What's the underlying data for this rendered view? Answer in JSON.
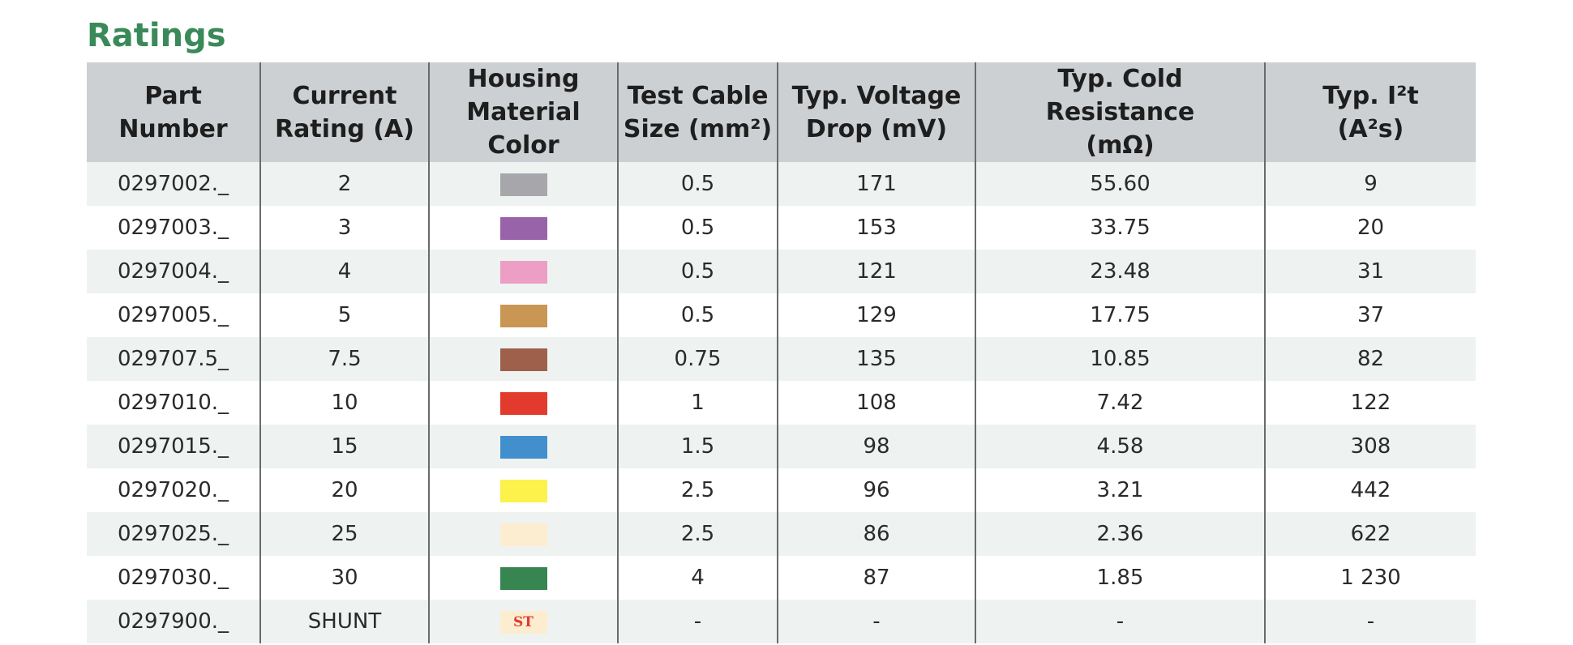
{
  "title": "Ratings",
  "headers": [
    [
      "Part Number"
    ],
    [
      "Current",
      "Rating (A)"
    ],
    [
      "Housing",
      "Material Color"
    ],
    [
      "Test Cable",
      "Size (mm²)"
    ],
    [
      "Typ. Voltage",
      "Drop (mV)"
    ],
    [
      "Typ. Cold Resistance",
      "(mΩ)"
    ],
    [
      "Typ. I²t",
      "(A²s)"
    ]
  ],
  "rows": [
    {
      "part": "0297002._",
      "current": "2",
      "color": "#a7a7ab",
      "swatch_text": "",
      "cable": "0.5",
      "drop": "171",
      "resistance": "55.60",
      "i2t": "9"
    },
    {
      "part": "0297003._",
      "current": "3",
      "color": "#9963aa",
      "swatch_text": "",
      "cable": "0.5",
      "drop": "153",
      "resistance": "33.75",
      "i2t": "20"
    },
    {
      "part": "0297004._",
      "current": "4",
      "color": "#ec9ec5",
      "swatch_text": "",
      "cable": "0.5",
      "drop": "121",
      "resistance": "23.48",
      "i2t": "31"
    },
    {
      "part": "0297005._",
      "current": "5",
      "color": "#c99653",
      "swatch_text": "",
      "cable": "0.5",
      "drop": "129",
      "resistance": "17.75",
      "i2t": "37"
    },
    {
      "part": "029707.5_",
      "current": "7.5",
      "color": "#9e5f4b",
      "swatch_text": "",
      "cable": "0.75",
      "drop": "135",
      "resistance": "10.85",
      "i2t": "82"
    },
    {
      "part": "0297010._",
      "current": "10",
      "color": "#e23b2e",
      "swatch_text": "",
      "cable": "1",
      "drop": "108",
      "resistance": "7.42",
      "i2t": "122"
    },
    {
      "part": "0297015._",
      "current": "15",
      "color": "#4190cd",
      "swatch_text": "",
      "cable": "1.5",
      "drop": "98",
      "resistance": "4.58",
      "i2t": "308"
    },
    {
      "part": "0297020._",
      "current": "20",
      "color": "#fcf24b",
      "swatch_text": "",
      "cable": "2.5",
      "drop": "96",
      "resistance": "3.21",
      "i2t": "442"
    },
    {
      "part": "0297025._",
      "current": "25",
      "color": "#fdedd0",
      "swatch_text": "",
      "cable": "2.5",
      "drop": "86",
      "resistance": "2.36",
      "i2t": "622"
    },
    {
      "part": "0297030._",
      "current": "30",
      "color": "#378551",
      "swatch_text": "",
      "cable": "4",
      "drop": "87",
      "resistance": "1.85",
      "i2t": "1 230"
    },
    {
      "part": "0297900._",
      "current": "SHUNT",
      "color": "#fdedd0",
      "swatch_text": "ST",
      "cable": "-",
      "drop": "-",
      "resistance": "-",
      "i2t": "-"
    }
  ]
}
